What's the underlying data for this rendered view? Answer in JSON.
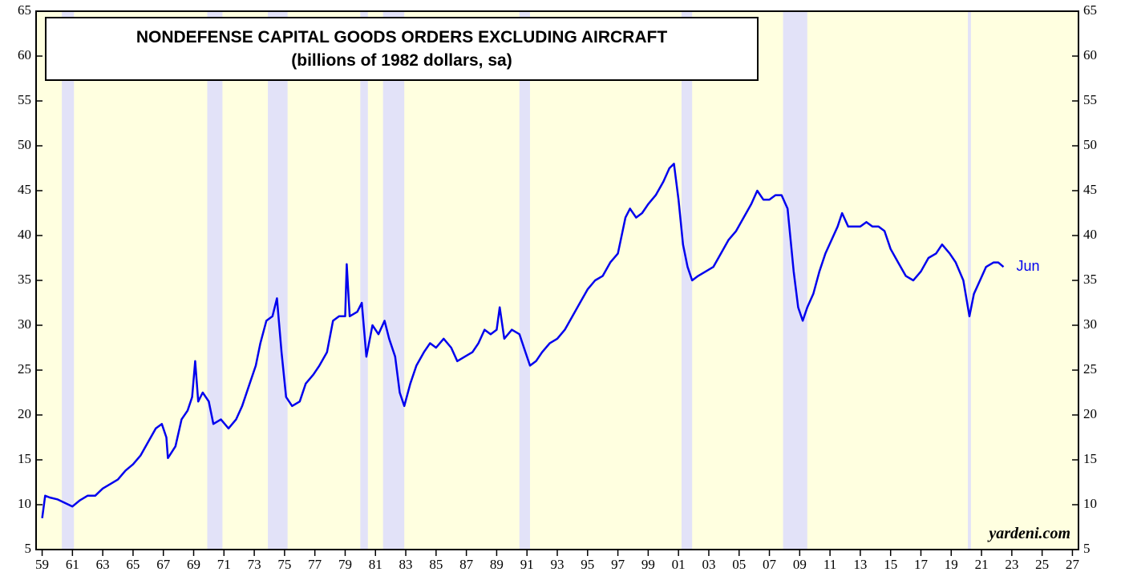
{
  "chart_data": {
    "type": "line",
    "title": "NONDEFENSE CAPITAL GOODS ORDERS EXCLUDING AIRCRAFT",
    "subtitle": "(billions of 1982 dollars, sa)",
    "annotation": "Jun",
    "source": "yardeni.com",
    "background": "#ffffe0",
    "shade_color": "#e2e2f8",
    "shaded_periods": [
      [
        1960.3,
        1961.1
      ],
      [
        1969.9,
        1970.9
      ],
      [
        1973.9,
        1975.2
      ],
      [
        1980.0,
        1980.5
      ],
      [
        1981.5,
        1982.9
      ],
      [
        1990.5,
        1991.2
      ],
      [
        2001.2,
        2001.9
      ],
      [
        2007.9,
        2009.5
      ],
      [
        2020.1,
        2020.3
      ]
    ],
    "xlim": [
      1958.6,
      2027.4
    ],
    "ylim": [
      5,
      65
    ],
    "yticks": [
      5,
      10,
      15,
      20,
      25,
      30,
      35,
      40,
      45,
      50,
      55,
      60,
      65
    ],
    "xticks": [
      {
        "value": 1959,
        "label": "59"
      },
      {
        "value": 1961,
        "label": "61"
      },
      {
        "value": 1963,
        "label": "63"
      },
      {
        "value": 1965,
        "label": "65"
      },
      {
        "value": 1967,
        "label": "67"
      },
      {
        "value": 1969,
        "label": "69"
      },
      {
        "value": 1971,
        "label": "71"
      },
      {
        "value": 1973,
        "label": "73"
      },
      {
        "value": 1975,
        "label": "75"
      },
      {
        "value": 1977,
        "label": "77"
      },
      {
        "value": 1979,
        "label": "79"
      },
      {
        "value": 1981,
        "label": "81"
      },
      {
        "value": 1983,
        "label": "83"
      },
      {
        "value": 1985,
        "label": "85"
      },
      {
        "value": 1987,
        "label": "87"
      },
      {
        "value": 1989,
        "label": "89"
      },
      {
        "value": 1991,
        "label": "91"
      },
      {
        "value": 1993,
        "label": "93"
      },
      {
        "value": 1995,
        "label": "95"
      },
      {
        "value": 1997,
        "label": "97"
      },
      {
        "value": 1999,
        "label": "99"
      },
      {
        "value": 2001,
        "label": "01"
      },
      {
        "value": 2003,
        "label": "03"
      },
      {
        "value": 2005,
        "label": "05"
      },
      {
        "value": 2007,
        "label": "07"
      },
      {
        "value": 2009,
        "label": "09"
      },
      {
        "value": 2011,
        "label": "11"
      },
      {
        "value": 2013,
        "label": "13"
      },
      {
        "value": 2015,
        "label": "15"
      },
      {
        "value": 2017,
        "label": "17"
      },
      {
        "value": 2019,
        "label": "19"
      },
      {
        "value": 2021,
        "label": "21"
      },
      {
        "value": 2023,
        "label": "23"
      },
      {
        "value": 2025,
        "label": "25"
      },
      {
        "value": 2027,
        "label": "27"
      }
    ],
    "series": [
      {
        "color": "#0000ee",
        "x": [
          1959.0,
          1959.2,
          1959.5,
          1960.0,
          1960.5,
          1961.0,
          1961.5,
          1962.0,
          1962.5,
          1963.0,
          1963.5,
          1964.0,
          1964.5,
          1965.0,
          1965.5,
          1966.0,
          1966.5,
          1966.9,
          1967.2,
          1967.3,
          1967.8,
          1968.2,
          1968.6,
          1968.9,
          1969.1,
          1969.3,
          1969.6,
          1970.0,
          1970.3,
          1970.8,
          1971.3,
          1971.8,
          1972.2,
          1972.7,
          1973.1,
          1973.4,
          1973.8,
          1974.2,
          1974.5,
          1974.8,
          1975.1,
          1975.5,
          1976.0,
          1976.4,
          1976.9,
          1977.3,
          1977.8,
          1978.2,
          1978.6,
          1979.0,
          1979.1,
          1979.3,
          1979.8,
          1980.1,
          1980.4,
          1980.8,
          1981.2,
          1981.6,
          1981.9,
          1982.3,
          1982.6,
          1982.9,
          1983.3,
          1983.7,
          1984.2,
          1984.6,
          1985.0,
          1985.5,
          1986.0,
          1986.4,
          1986.9,
          1987.4,
          1987.8,
          1988.2,
          1988.6,
          1989.0,
          1989.2,
          1989.5,
          1990.0,
          1990.5,
          1990.9,
          1991.2,
          1991.6,
          1992.0,
          1992.5,
          1993.0,
          1993.5,
          1994.0,
          1994.5,
          1995.0,
          1995.5,
          1996.0,
          1996.5,
          1997.0,
          1997.5,
          1997.8,
          1998.2,
          1998.6,
          1999.0,
          1999.5,
          2000.0,
          2000.4,
          2000.7,
          2001.0,
          2001.3,
          2001.6,
          2001.9,
          2002.3,
          2002.8,
          2003.3,
          2003.8,
          2004.3,
          2004.8,
          2005.3,
          2005.8,
          2006.2,
          2006.6,
          2007.0,
          2007.4,
          2007.8,
          2008.2,
          2008.6,
          2008.9,
          2009.2,
          2009.5,
          2009.9,
          2010.3,
          2010.7,
          2011.1,
          2011.5,
          2011.8,
          2012.2,
          2012.6,
          2013.0,
          2013.4,
          2013.8,
          2014.2,
          2014.6,
          2015.0,
          2015.5,
          2016.0,
          2016.5,
          2017.0,
          2017.5,
          2018.0,
          2018.4,
          2018.9,
          2019.3,
          2019.8,
          2020.2,
          2020.5,
          2020.9,
          2021.3,
          2021.8,
          2022.1,
          2022.45
        ],
        "values": [
          8.5,
          11,
          10.8,
          10.6,
          10.2,
          9.8,
          10.5,
          11,
          11,
          11.8,
          12.3,
          12.8,
          13.8,
          14.5,
          15.5,
          17,
          18.5,
          19,
          17.5,
          15.2,
          16.5,
          19.5,
          20.5,
          22,
          26,
          21.5,
          22.5,
          21.5,
          19,
          19.5,
          18.5,
          19.5,
          21,
          23.5,
          25.5,
          28,
          30.5,
          31,
          33,
          27,
          22,
          21,
          21.5,
          23.5,
          24.5,
          25.5,
          27,
          30.5,
          31,
          31,
          36.8,
          31,
          31.5,
          32.5,
          26.5,
          30,
          29,
          30.5,
          28.5,
          26.5,
          22.5,
          21,
          23.5,
          25.5,
          27,
          28,
          27.5,
          28.5,
          27.5,
          26,
          26.5,
          27,
          28,
          29.5,
          29,
          29.5,
          32,
          28.5,
          29.5,
          29,
          27,
          25.5,
          26,
          27,
          28,
          28.5,
          29.5,
          31,
          32.5,
          34,
          35,
          35.5,
          37,
          38,
          42,
          43,
          42,
          42.5,
          43.5,
          44.5,
          46,
          47.5,
          48,
          44,
          39,
          36.5,
          35,
          35.5,
          36,
          36.5,
          38,
          39.5,
          40.5,
          42,
          43.5,
          45,
          44,
          44,
          44.5,
          44.5,
          43,
          36,
          32,
          30.5,
          32,
          33.5,
          36,
          38,
          39.5,
          41,
          42.5,
          41,
          41,
          41,
          41.5,
          41,
          41,
          40.5,
          38.5,
          37,
          35.5,
          35,
          36,
          37.5,
          38,
          39,
          38,
          37,
          35,
          31,
          33.5,
          35,
          36.5,
          37,
          37,
          36.5
        ]
      }
    ]
  }
}
